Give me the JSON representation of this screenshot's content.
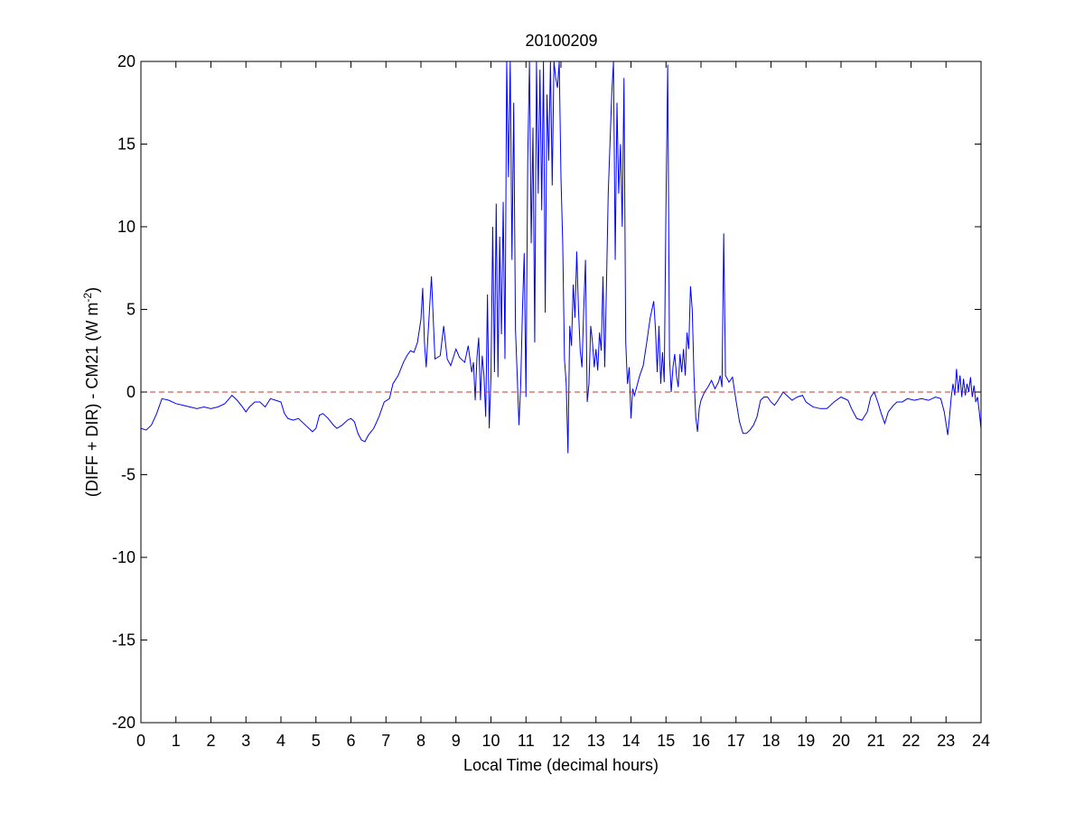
{
  "chart_data": {
    "type": "line",
    "title": "20100209",
    "xlabel": "Local Time (decimal hours)",
    "ylabel": {
      "prefix": "(DIFF + DIR) - CM21 (W m",
      "superscript": "-2",
      "suffix": ")"
    },
    "xlim": [
      0,
      24
    ],
    "ylim": [
      -20,
      20
    ],
    "xticks": [
      0,
      1,
      2,
      3,
      4,
      5,
      6,
      7,
      8,
      9,
      10,
      11,
      12,
      13,
      14,
      15,
      16,
      17,
      18,
      19,
      20,
      21,
      22,
      23,
      24
    ],
    "yticks": [
      -20,
      -15,
      -10,
      -5,
      0,
      5,
      10,
      15,
      20
    ],
    "grid": false,
    "legend": "none",
    "reference_line": {
      "y": 0,
      "style": "dashed",
      "color": "#c0392b"
    },
    "series": [
      {
        "color": "#0000ff",
        "points": [
          [
            0.0,
            -2.2
          ],
          [
            0.15,
            -2.3
          ],
          [
            0.3,
            -2.0
          ],
          [
            0.45,
            -1.3
          ],
          [
            0.6,
            -0.4
          ],
          [
            0.8,
            -0.5
          ],
          [
            1.0,
            -0.7
          ],
          [
            1.2,
            -0.8
          ],
          [
            1.4,
            -0.9
          ],
          [
            1.6,
            -1.0
          ],
          [
            1.8,
            -0.9
          ],
          [
            2.0,
            -1.0
          ],
          [
            2.2,
            -0.9
          ],
          [
            2.4,
            -0.7
          ],
          [
            2.6,
            -0.2
          ],
          [
            2.75,
            -0.5
          ],
          [
            2.9,
            -0.9
          ],
          [
            3.0,
            -1.2
          ],
          [
            3.1,
            -0.9
          ],
          [
            3.25,
            -0.6
          ],
          [
            3.4,
            -0.6
          ],
          [
            3.55,
            -0.9
          ],
          [
            3.7,
            -0.4
          ],
          [
            3.85,
            -0.5
          ],
          [
            4.0,
            -0.6
          ],
          [
            4.1,
            -1.3
          ],
          [
            4.2,
            -1.6
          ],
          [
            4.35,
            -1.7
          ],
          [
            4.5,
            -1.6
          ],
          [
            4.6,
            -1.8
          ],
          [
            4.75,
            -2.1
          ],
          [
            4.9,
            -2.4
          ],
          [
            5.0,
            -2.2
          ],
          [
            5.1,
            -1.4
          ],
          [
            5.2,
            -1.3
          ],
          [
            5.35,
            -1.6
          ],
          [
            5.5,
            -2.0
          ],
          [
            5.6,
            -2.2
          ],
          [
            5.75,
            -2.0
          ],
          [
            5.9,
            -1.7
          ],
          [
            6.0,
            -1.6
          ],
          [
            6.1,
            -1.8
          ],
          [
            6.2,
            -2.5
          ],
          [
            6.3,
            -2.9
          ],
          [
            6.4,
            -3.0
          ],
          [
            6.5,
            -2.6
          ],
          [
            6.65,
            -2.2
          ],
          [
            6.8,
            -1.5
          ],
          [
            6.95,
            -0.6
          ],
          [
            7.1,
            -0.4
          ],
          [
            7.2,
            0.5
          ],
          [
            7.35,
            1.0
          ],
          [
            7.5,
            1.8
          ],
          [
            7.6,
            2.2
          ],
          [
            7.7,
            2.5
          ],
          [
            7.8,
            2.4
          ],
          [
            7.9,
            3.0
          ],
          [
            8.0,
            4.4
          ],
          [
            8.05,
            6.3
          ],
          [
            8.1,
            3.0
          ],
          [
            8.15,
            1.5
          ],
          [
            8.2,
            3.4
          ],
          [
            8.3,
            7.0
          ],
          [
            8.4,
            2.0
          ],
          [
            8.55,
            2.2
          ],
          [
            8.65,
            4.0
          ],
          [
            8.75,
            2.0
          ],
          [
            8.85,
            1.6
          ],
          [
            9.0,
            2.6
          ],
          [
            9.1,
            2.1
          ],
          [
            9.25,
            1.8
          ],
          [
            9.35,
            2.8
          ],
          [
            9.45,
            1.2
          ],
          [
            9.5,
            1.8
          ],
          [
            9.55,
            -0.5
          ],
          [
            9.6,
            2.1
          ],
          [
            9.65,
            3.3
          ],
          [
            9.7,
            -0.5
          ],
          [
            9.75,
            2.2
          ],
          [
            9.8,
            1.0
          ],
          [
            9.85,
            -1.5
          ],
          [
            9.9,
            5.9
          ],
          [
            9.95,
            -2.2
          ],
          [
            10.0,
            0.9
          ],
          [
            10.05,
            10.0
          ],
          [
            10.1,
            1.2
          ],
          [
            10.15,
            11.4
          ],
          [
            10.2,
            0.9
          ],
          [
            10.25,
            9.4
          ],
          [
            10.3,
            3.5
          ],
          [
            10.35,
            11.5
          ],
          [
            10.4,
            2.0
          ],
          [
            10.45,
            20.0
          ],
          [
            10.5,
            13.0
          ],
          [
            10.55,
            20.0
          ],
          [
            10.6,
            8.0
          ],
          [
            10.65,
            17.5
          ],
          [
            10.7,
            3.8
          ],
          [
            10.75,
            1.0
          ],
          [
            10.8,
            -2.0
          ],
          [
            10.85,
            0.5
          ],
          [
            10.9,
            5.0
          ],
          [
            10.95,
            8.4
          ],
          [
            11.0,
            -0.3
          ],
          [
            11.05,
            14.0
          ],
          [
            11.1,
            20.0
          ],
          [
            11.15,
            9.0
          ],
          [
            11.2,
            16.0
          ],
          [
            11.25,
            3.0
          ],
          [
            11.3,
            20.0
          ],
          [
            11.35,
            12.0
          ],
          [
            11.4,
            19.5
          ],
          [
            11.45,
            11.0
          ],
          [
            11.5,
            20.0
          ],
          [
            11.55,
            4.8
          ],
          [
            11.6,
            18.0
          ],
          [
            11.65,
            14.0
          ],
          [
            11.7,
            20.0
          ],
          [
            11.75,
            12.5
          ],
          [
            11.8,
            20.0
          ],
          [
            11.85,
            19.0
          ],
          [
            11.9,
            18.4
          ],
          [
            11.95,
            20.0
          ],
          [
            12.0,
            13.0
          ],
          [
            12.05,
            9.0
          ],
          [
            12.1,
            2.0
          ],
          [
            12.15,
            0.5
          ],
          [
            12.2,
            -3.7
          ],
          [
            12.25,
            4.0
          ],
          [
            12.3,
            2.8
          ],
          [
            12.35,
            6.5
          ],
          [
            12.4,
            4.5
          ],
          [
            12.45,
            8.5
          ],
          [
            12.5,
            5.0
          ],
          [
            12.55,
            2.5
          ],
          [
            12.6,
            1.5
          ],
          [
            12.65,
            5.0
          ],
          [
            12.7,
            8.0
          ],
          [
            12.75,
            -0.6
          ],
          [
            12.8,
            0.5
          ],
          [
            12.85,
            4.0
          ],
          [
            12.9,
            3.0
          ],
          [
            12.95,
            1.5
          ],
          [
            13.0,
            2.6
          ],
          [
            13.05,
            1.3
          ],
          [
            13.1,
            3.6
          ],
          [
            13.15,
            2.5
          ],
          [
            13.2,
            7.0
          ],
          [
            13.25,
            1.5
          ],
          [
            13.3,
            6.5
          ],
          [
            13.35,
            12.0
          ],
          [
            13.4,
            15.0
          ],
          [
            13.45,
            18.0
          ],
          [
            13.5,
            20.0
          ],
          [
            13.55,
            8.0
          ],
          [
            13.6,
            17.5
          ],
          [
            13.65,
            12.0
          ],
          [
            13.7,
            15.0
          ],
          [
            13.75,
            10.0
          ],
          [
            13.8,
            19.0
          ],
          [
            13.85,
            3.0
          ],
          [
            13.9,
            0.5
          ],
          [
            13.95,
            1.5
          ],
          [
            14.0,
            -1.6
          ],
          [
            14.05,
            0.2
          ],
          [
            14.1,
            -0.2
          ],
          [
            14.15,
            0.2
          ],
          [
            14.25,
            1.0
          ],
          [
            14.35,
            1.6
          ],
          [
            14.45,
            3.0
          ],
          [
            14.55,
            4.5
          ],
          [
            14.65,
            5.5
          ],
          [
            14.7,
            3.8
          ],
          [
            14.75,
            1.2
          ],
          [
            14.8,
            4.0
          ],
          [
            14.85,
            0.5
          ],
          [
            14.9,
            2.4
          ],
          [
            14.95,
            0.6
          ],
          [
            15.0,
            11.3
          ],
          [
            15.05,
            19.8
          ],
          [
            15.1,
            2.1
          ],
          [
            15.15,
            0.0
          ],
          [
            15.2,
            1.5
          ],
          [
            15.25,
            2.3
          ],
          [
            15.3,
            1.0
          ],
          [
            15.35,
            0.3
          ],
          [
            15.4,
            2.3
          ],
          [
            15.45,
            1.2
          ],
          [
            15.5,
            2.6
          ],
          [
            15.55,
            1.0
          ],
          [
            15.6,
            3.6
          ],
          [
            15.65,
            2.6
          ],
          [
            15.7,
            6.4
          ],
          [
            15.75,
            5.0
          ],
          [
            15.8,
            1.0
          ],
          [
            15.85,
            -1.5
          ],
          [
            15.9,
            -2.4
          ],
          [
            15.95,
            -1.0
          ],
          [
            16.0,
            -0.5
          ],
          [
            16.1,
            0.0
          ],
          [
            16.2,
            0.3
          ],
          [
            16.3,
            0.7
          ],
          [
            16.4,
            0.2
          ],
          [
            16.5,
            0.6
          ],
          [
            16.55,
            1.0
          ],
          [
            16.6,
            0.3
          ],
          [
            16.65,
            9.6
          ],
          [
            16.7,
            1.0
          ],
          [
            16.8,
            0.6
          ],
          [
            16.9,
            0.9
          ],
          [
            17.0,
            -0.5
          ],
          [
            17.1,
            -1.8
          ],
          [
            17.2,
            -2.5
          ],
          [
            17.3,
            -2.5
          ],
          [
            17.4,
            -2.3
          ],
          [
            17.5,
            -2.0
          ],
          [
            17.6,
            -1.5
          ],
          [
            17.7,
            -0.5
          ],
          [
            17.8,
            -0.3
          ],
          [
            17.9,
            -0.3
          ],
          [
            18.0,
            -0.6
          ],
          [
            18.1,
            -0.8
          ],
          [
            18.2,
            -0.5
          ],
          [
            18.35,
            0.0
          ],
          [
            18.5,
            -0.3
          ],
          [
            18.6,
            -0.5
          ],
          [
            18.75,
            -0.3
          ],
          [
            18.9,
            -0.2
          ],
          [
            19.0,
            -0.6
          ],
          [
            19.2,
            -0.9
          ],
          [
            19.4,
            -1.0
          ],
          [
            19.6,
            -1.0
          ],
          [
            19.8,
            -0.6
          ],
          [
            20.0,
            -0.3
          ],
          [
            20.2,
            -0.5
          ],
          [
            20.3,
            -1.0
          ],
          [
            20.45,
            -1.6
          ],
          [
            20.6,
            -1.7
          ],
          [
            20.75,
            -1.2
          ],
          [
            20.85,
            -0.3
          ],
          [
            20.95,
            0.0
          ],
          [
            21.05,
            -0.6
          ],
          [
            21.15,
            -1.3
          ],
          [
            21.25,
            -1.9
          ],
          [
            21.35,
            -1.2
          ],
          [
            21.5,
            -0.8
          ],
          [
            21.6,
            -0.6
          ],
          [
            21.75,
            -0.6
          ],
          [
            21.9,
            -0.4
          ],
          [
            22.1,
            -0.5
          ],
          [
            22.3,
            -0.4
          ],
          [
            22.5,
            -0.5
          ],
          [
            22.7,
            -0.3
          ],
          [
            22.85,
            -0.4
          ],
          [
            22.95,
            -1.2
          ],
          [
            23.05,
            -2.6
          ],
          [
            23.1,
            -1.5
          ],
          [
            23.15,
            -0.3
          ],
          [
            23.2,
            0.5
          ],
          [
            23.25,
            -0.2
          ],
          [
            23.3,
            1.4
          ],
          [
            23.35,
            0.0
          ],
          [
            23.4,
            1.0
          ],
          [
            23.45,
            -0.3
          ],
          [
            23.5,
            0.8
          ],
          [
            23.55,
            -0.2
          ],
          [
            23.6,
            0.5
          ],
          [
            23.65,
            0.0
          ],
          [
            23.7,
            0.9
          ],
          [
            23.75,
            -0.3
          ],
          [
            23.8,
            0.4
          ],
          [
            23.85,
            -0.6
          ],
          [
            23.9,
            -0.3
          ],
          [
            23.95,
            -1.2
          ],
          [
            24.0,
            -2.2
          ]
        ]
      }
    ]
  }
}
